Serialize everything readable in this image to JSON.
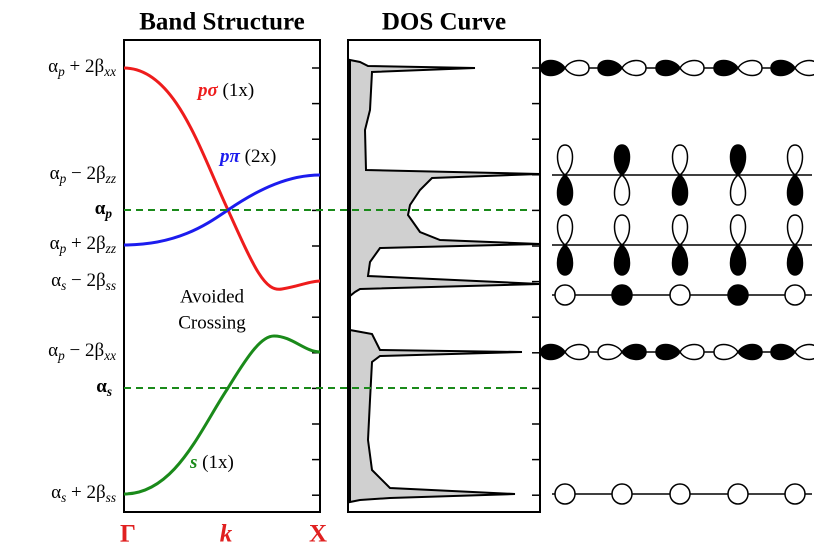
{
  "header": {
    "band_title": "Band Structure",
    "dos_title": "DOS Curve"
  },
  "energy_labels": [
    {
      "symbol": "α",
      "symbol_sub": "p",
      "operator": " + 2β",
      "beta_sub": "xx"
    },
    {
      "symbol": "α",
      "symbol_sub": "p",
      "operator": " − 2β",
      "beta_sub": "zz"
    },
    {
      "symbol": "α",
      "symbol_sub": "p"
    },
    {
      "symbol": "α",
      "symbol_sub": "p",
      "operator": " + 2β",
      "beta_sub": "zz"
    },
    {
      "symbol": "α",
      "symbol_sub": "s",
      "operator": " − 2β",
      "beta_sub": "ss"
    },
    {
      "symbol": "α",
      "symbol_sub": "p",
      "operator": " − 2β",
      "beta_sub": "xx"
    },
    {
      "symbol": "α",
      "symbol_sub": "s"
    },
    {
      "symbol": "α",
      "symbol_sub": "s",
      "operator": " + 2β",
      "beta_sub": "ss"
    }
  ],
  "band_labels": [
    {
      "name": "pσ",
      "degeneracy": "(1x)"
    },
    {
      "name": "pπ",
      "degeneracy": "(2x)"
    },
    {
      "name": "s",
      "degeneracy": "(1x)"
    }
  ],
  "annotation": [
    "Avoided",
    "Crossing"
  ],
  "k_points": [
    "Γ",
    "k",
    "X"
  ]
}
